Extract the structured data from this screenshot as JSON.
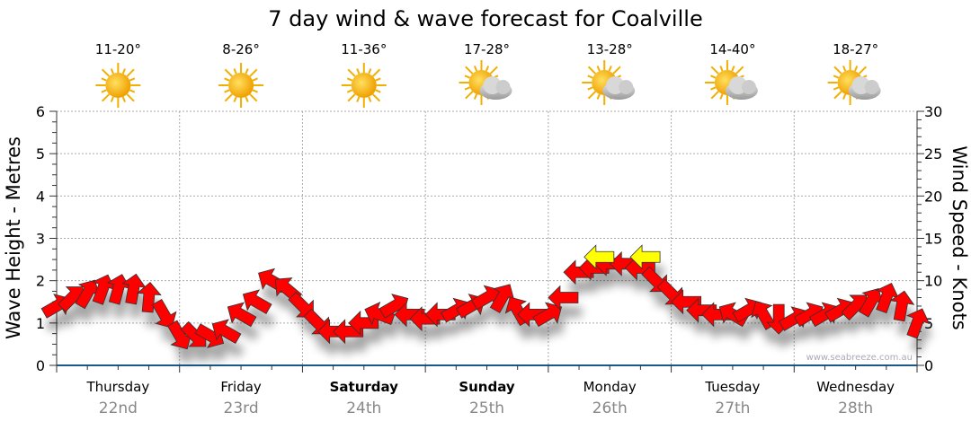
{
  "chart_data": {
    "type": "wind-wave-forecast",
    "title": "7 day wind & wave forecast for Coalville",
    "ylabel_left": "Wave Height - Metres",
    "ylabel_right": "Wind Speed - Knots",
    "ylim_left": [
      0,
      6
    ],
    "ylim_right": [
      0,
      30
    ],
    "yticks_left": [
      "0",
      "1",
      "2",
      "3",
      "4",
      "5",
      "6"
    ],
    "yticks_right": [
      "0",
      "5",
      "10",
      "15",
      "20",
      "25",
      "30"
    ],
    "grid": true,
    "watermark": "www.seabreeze.com.au",
    "days": [
      {
        "name": "Thursday",
        "date": "22nd",
        "temp": "11-20°",
        "icon": "sunny",
        "weekend": false
      },
      {
        "name": "Friday",
        "date": "23rd",
        "temp": "8-26°",
        "icon": "sunny",
        "weekend": false
      },
      {
        "name": "Saturday",
        "date": "24th",
        "temp": "11-36°",
        "icon": "sunny",
        "weekend": true
      },
      {
        "name": "Sunday",
        "date": "25th",
        "temp": "17-28°",
        "icon": "partly-cloudy",
        "weekend": true
      },
      {
        "name": "Monday",
        "date": "26th",
        "temp": "13-28°",
        "icon": "partly-cloudy",
        "weekend": false
      },
      {
        "name": "Tuesday",
        "date": "27th",
        "temp": "14-40°",
        "icon": "partly-cloudy",
        "weekend": false
      },
      {
        "name": "Wednesday",
        "date": "28th",
        "temp": "18-27°",
        "icon": "partly-cloudy",
        "weekend": false
      }
    ],
    "wind_interval_hours": 3,
    "wind_knots": [
      7,
      8,
      8.5,
      9,
      9,
      9,
      8,
      6,
      3.5,
      3.5,
      3.5,
      4,
      6,
      7.5,
      10,
      9,
      7,
      5,
      4,
      4,
      5,
      6,
      7,
      6,
      5.5,
      6,
      6.5,
      7,
      8,
      8,
      6.5,
      6,
      6,
      8,
      11,
      11.5,
      12,
      12,
      11.5,
      10,
      8.5,
      7.5,
      6.5,
      6,
      6,
      6.5,
      6,
      5.5,
      5.5,
      6,
      6,
      6.5,
      7,
      7.5,
      8,
      7,
      5
    ],
    "wind_arrow_bearing": [
      60,
      45,
      30,
      20,
      15,
      10,
      5,
      150,
      150,
      135,
      120,
      300,
      300,
      300,
      300,
      310,
      135,
      135,
      270,
      270,
      270,
      290,
      60,
      270,
      270,
      270,
      60,
      60,
      60,
      30,
      330,
      270,
      60,
      270,
      270,
      270,
      270,
      270,
      270,
      135,
      135,
      270,
      270,
      270,
      300,
      60,
      330,
      180,
      60,
      60,
      60,
      60,
      45,
      30,
      20,
      10,
      20
    ],
    "strong_wind": [
      {
        "day": 4,
        "hour": 10,
        "knots": 12.8,
        "bearing": 270
      },
      {
        "day": 4,
        "hour": 19,
        "knots": 12.8,
        "bearing": 270
      }
    ],
    "colors": {
      "wind": "#ff0000",
      "strong_wind": "#ffff00",
      "axis": "#1a5a8a",
      "date": "#888888"
    }
  }
}
